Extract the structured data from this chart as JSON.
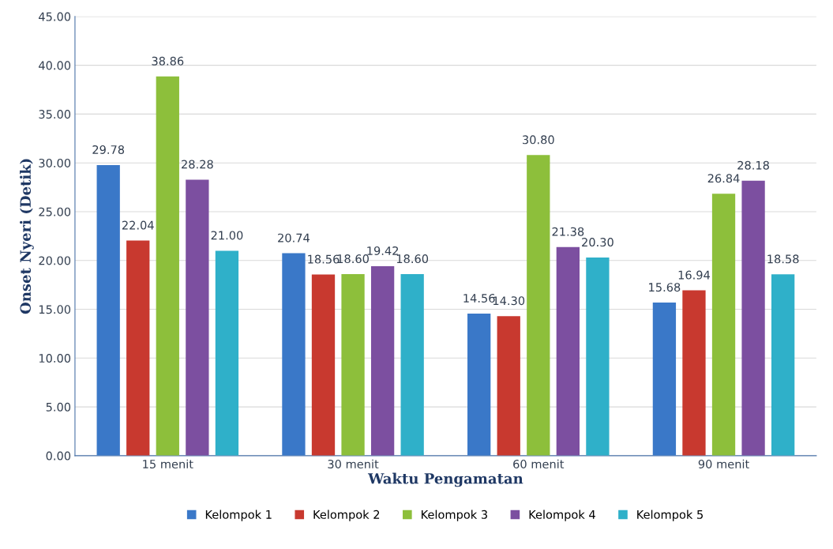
{
  "chart_data": {
    "type": "bar",
    "xlabel": "Waktu Pengamatan",
    "ylabel": "Onset Nyeri (Detik)",
    "categories": [
      "15 menit",
      "30 menit",
      "60 menit",
      "90 menit"
    ],
    "series": [
      {
        "name": "Kelompok 1",
        "color": "#3a78c8",
        "values": [
          29.78,
          20.74,
          14.56,
          15.68
        ],
        "value_labels": [
          "29.78",
          "20.74",
          "14.56",
          "15.68"
        ]
      },
      {
        "name": "Kelompok 2",
        "color": "#c8392f",
        "values": [
          22.04,
          18.56,
          14.3,
          16.94
        ],
        "value_labels": [
          "22.04",
          "18.56",
          "14.30",
          "16.94"
        ]
      },
      {
        "name": "Kelompok 3",
        "color": "#8dbf3b",
        "values": [
          38.86,
          18.6,
          30.8,
          26.84
        ],
        "value_labels": [
          "38.86",
          "18.60",
          "30.80",
          "26.84"
        ]
      },
      {
        "name": "Kelompok 4",
        "color": "#7c4fa0",
        "values": [
          28.28,
          19.42,
          21.38,
          28.18
        ],
        "value_labels": [
          "28.28",
          "19.42",
          "21.38",
          "28.18"
        ]
      },
      {
        "name": "Kelompok 5",
        "color": "#2fb0c9",
        "values": [
          21.0,
          18.6,
          20.3,
          18.58
        ],
        "value_labels": [
          "21.00",
          "18.60",
          "20.30",
          "18.58"
        ]
      }
    ],
    "ylim": [
      0,
      45
    ],
    "yticks": [
      {
        "value": 0,
        "label": "0.00"
      },
      {
        "value": 5,
        "label": "5.00"
      },
      {
        "value": 10,
        "label": "10.00"
      },
      {
        "value": 15,
        "label": "15.00"
      },
      {
        "value": 20,
        "label": "20.00"
      },
      {
        "value": 25,
        "label": "25.00"
      },
      {
        "value": 30,
        "label": "30.00"
      },
      {
        "value": 35,
        "label": "35.00"
      },
      {
        "value": 40,
        "label": "40.00"
      },
      {
        "value": 45,
        "label": "45.00"
      }
    ],
    "grid": "y",
    "legend": "bottom"
  }
}
